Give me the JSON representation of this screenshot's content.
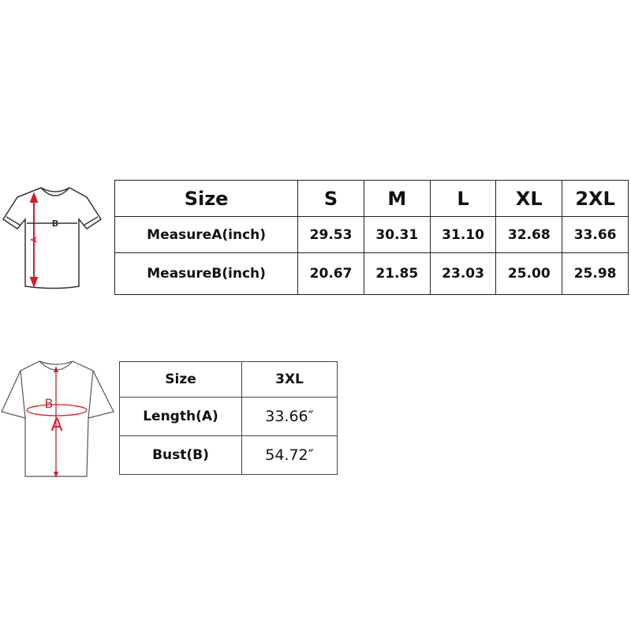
{
  "table1": {
    "header": [
      "Size",
      "S",
      "M",
      "L",
      "XL",
      "2XL"
    ],
    "rows": [
      [
        "MeasureA(inch)",
        "29.53",
        "30.31",
        "31.10",
        "32.68",
        "33.66"
      ],
      [
        "MeasureB(inch)",
        "20.67",
        "21.85",
        "23.03",
        "25.00",
        "25.98"
      ]
    ]
  },
  "table2": {
    "header": [
      "Size",
      "3XL"
    ],
    "rows": [
      [
        "Length(A)",
        "33.66″"
      ],
      [
        "Bust(B)",
        "54.72″"
      ]
    ]
  },
  "diagram1": {
    "label_a": "A",
    "label_b": "B"
  },
  "diagram2": {
    "label_a": "A",
    "label_b": "B"
  },
  "colors": {
    "measure_line": "#d0202a",
    "outline": "#333333"
  }
}
